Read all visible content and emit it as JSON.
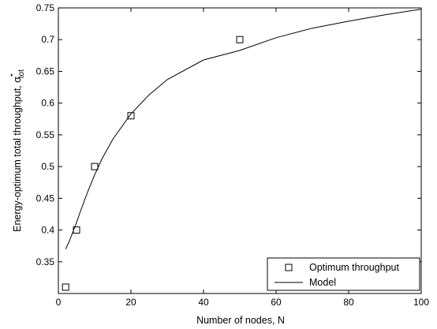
{
  "chart_data": {
    "type": "scatter",
    "xlabel": "Number of nodes, N",
    "ylabel_main": "Energy-optimum total throughput, σ",
    "ylabel_sup": "*",
    "ylabel_sub": "tot",
    "xlim": [
      0,
      100
    ],
    "ylim": [
      0.3,
      0.75
    ],
    "x_ticks": [
      0,
      20,
      40,
      60,
      80,
      100
    ],
    "y_ticks": [
      0.35,
      0.4,
      0.45,
      0.5,
      0.55,
      0.6,
      0.65,
      0.7,
      0.75
    ],
    "y_tick_labels": [
      "0.35",
      "0.4",
      "0.45",
      "0.5",
      "0.55",
      "0.6",
      "0.65",
      "0.7",
      "0.75"
    ],
    "grid": false,
    "legend_position": "bottom-right",
    "series": [
      {
        "name": "Optimum throughput",
        "kind": "markers",
        "marker": "square",
        "x": [
          2,
          5,
          10,
          20,
          50
        ],
        "y": [
          0.31,
          0.4,
          0.5,
          0.58,
          0.7
        ]
      },
      {
        "name": "Model",
        "kind": "line",
        "x": [
          2,
          3,
          4,
          5,
          6,
          8,
          10,
          12,
          15,
          20,
          25,
          30,
          40,
          50,
          60,
          70,
          80,
          90,
          100
        ],
        "y": [
          0.37,
          0.382,
          0.397,
          0.412,
          0.428,
          0.459,
          0.487,
          0.512,
          0.543,
          0.583,
          0.613,
          0.637,
          0.668,
          0.683,
          0.703,
          0.718,
          0.729,
          0.739,
          0.748
        ]
      }
    ]
  }
}
